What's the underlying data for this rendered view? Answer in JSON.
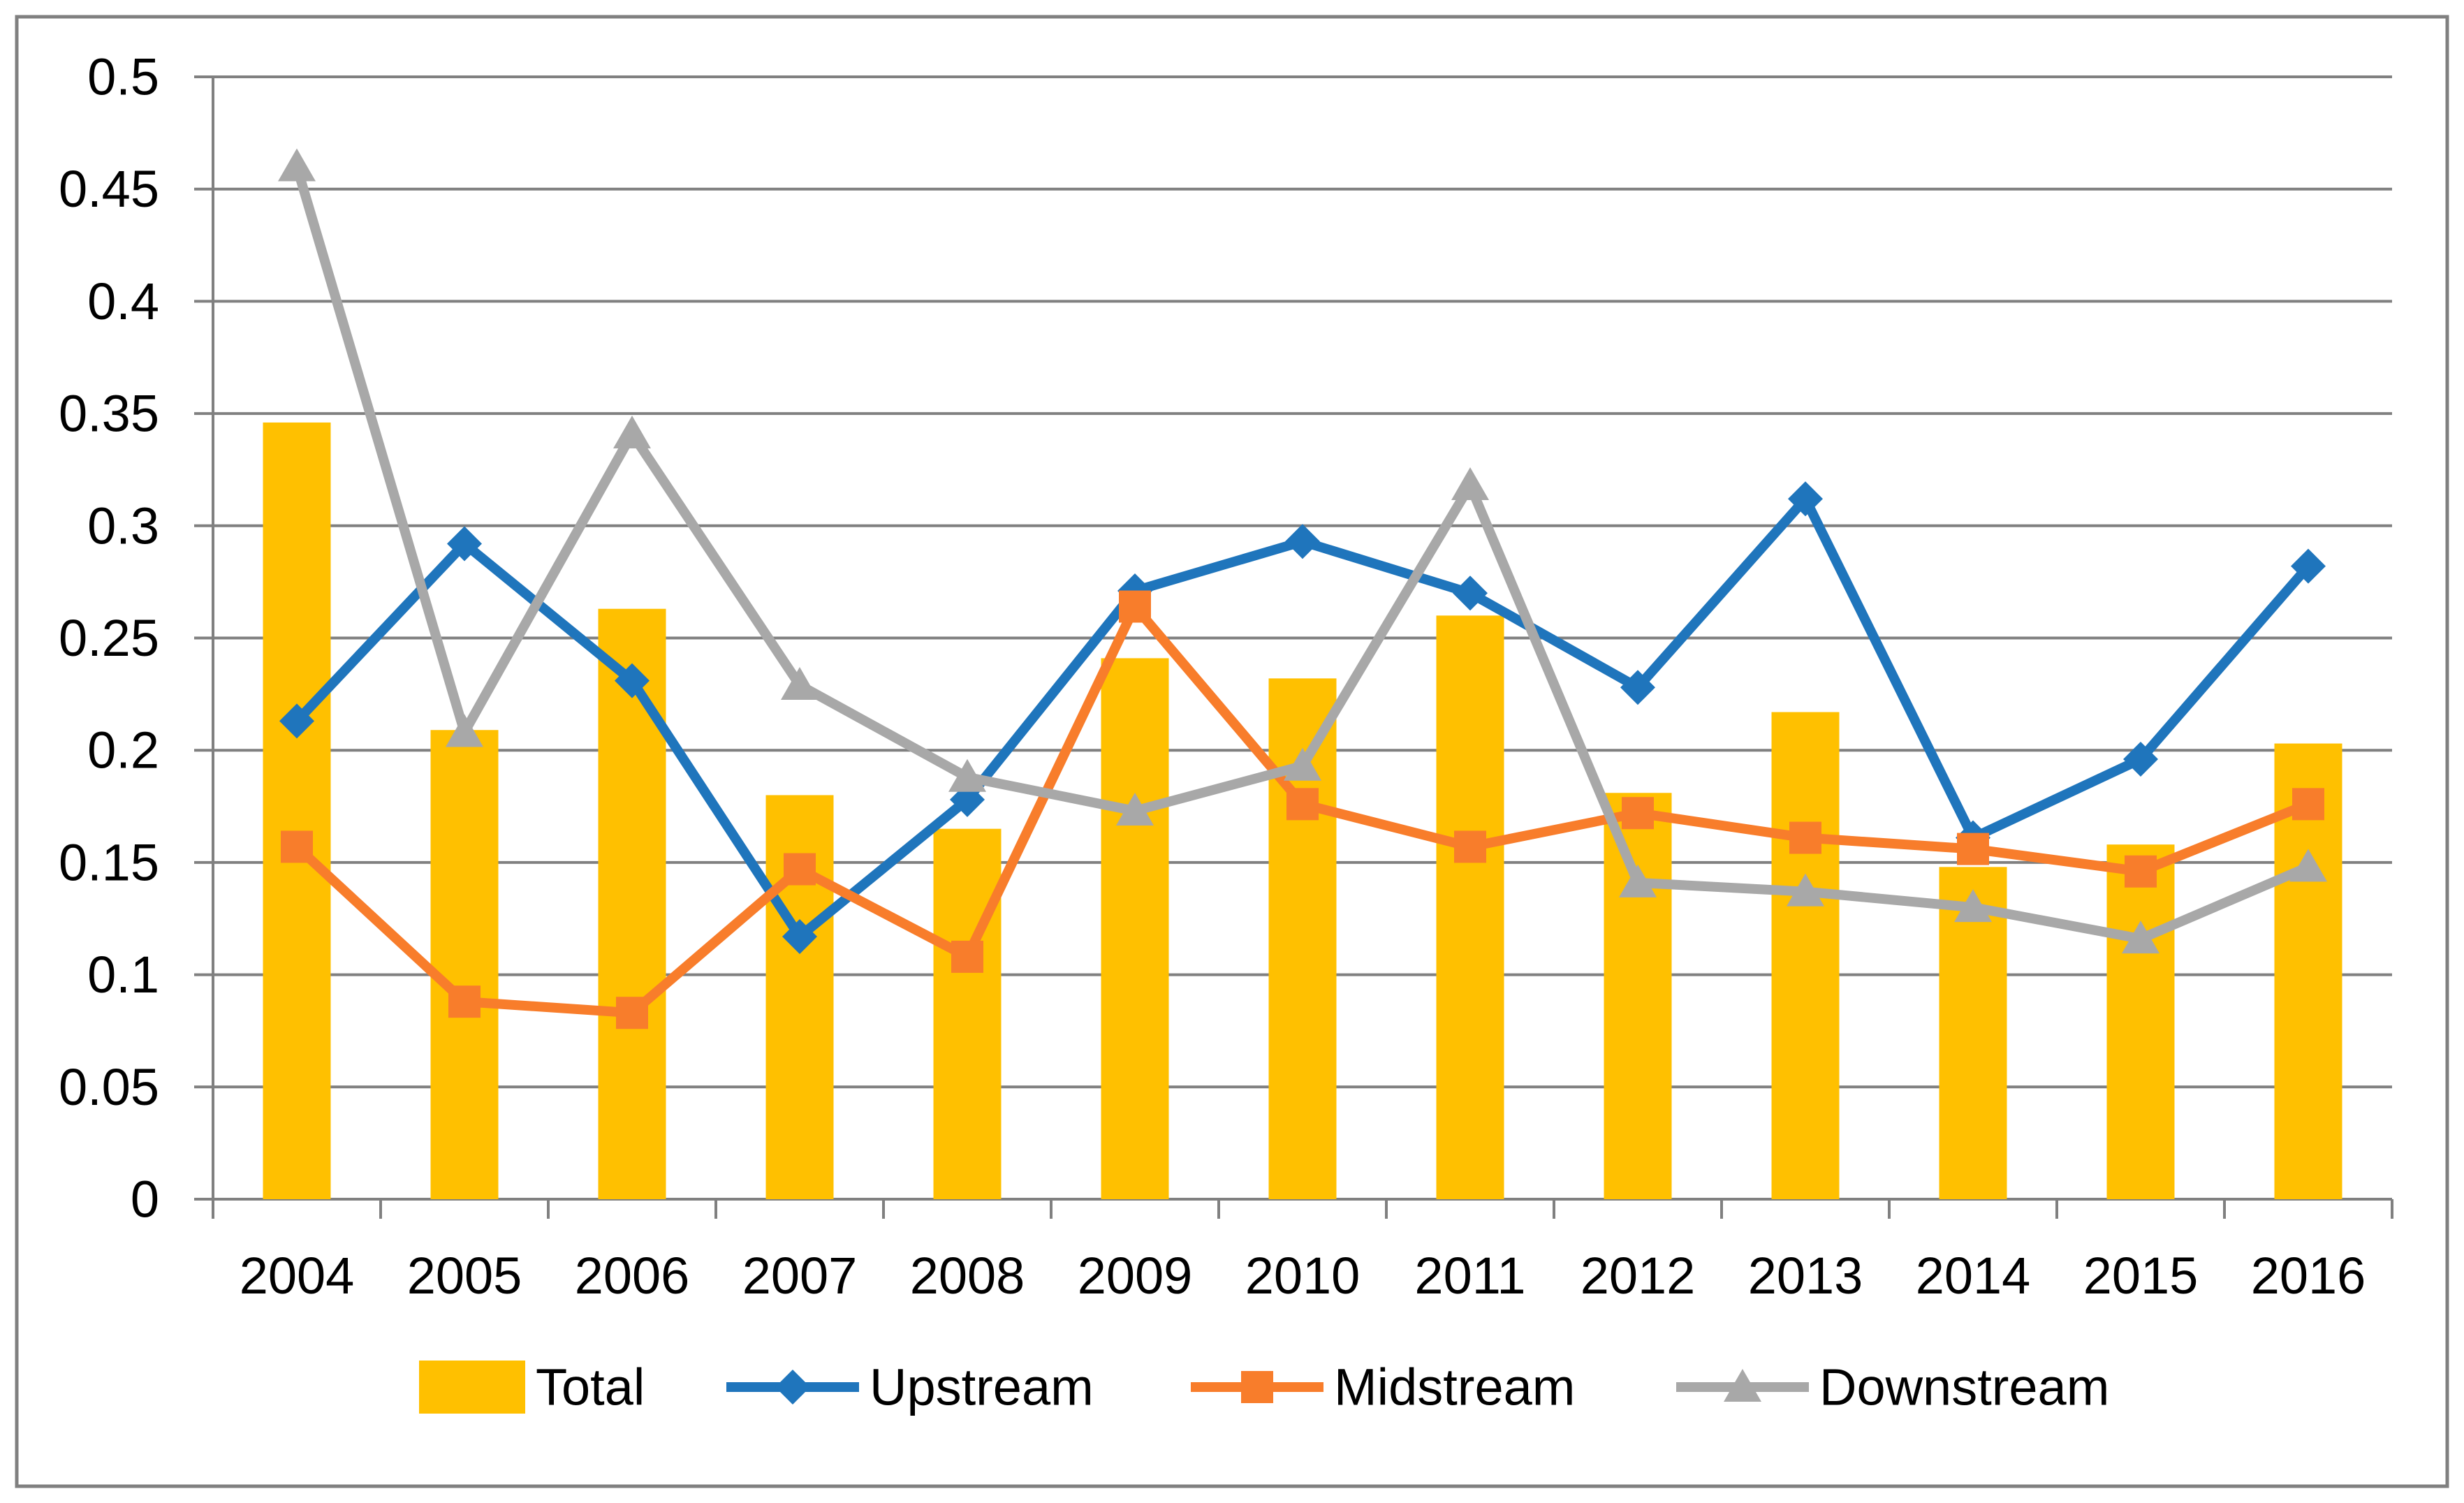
{
  "chart_data": {
    "type": "combo",
    "title": "",
    "categories": [
      "2004",
      "2005",
      "2006",
      "2007",
      "2008",
      "2009",
      "2010",
      "2011",
      "2012",
      "2013",
      "2014",
      "2015",
      "2016"
    ],
    "series": [
      {
        "name": "Total",
        "type": "bar",
        "marker": "rect",
        "color": "#FFC000",
        "values": [
          0.346,
          0.209,
          0.263,
          0.18,
          0.165,
          0.241,
          0.232,
          0.26,
          0.181,
          0.217,
          0.148,
          0.158,
          0.203
        ]
      },
      {
        "name": "Upstream",
        "type": "line",
        "marker": "diamond",
        "color": "#1F75BC",
        "values": [
          0.213,
          0.292,
          0.231,
          0.117,
          0.178,
          0.271,
          0.293,
          0.27,
          0.228,
          0.312,
          0.161,
          0.196,
          0.282
        ]
      },
      {
        "name": "Midstream",
        "type": "line",
        "marker": "square",
        "color": "#F87D2B",
        "values": [
          0.157,
          0.088,
          0.083,
          0.147,
          0.108,
          0.264,
          0.176,
          0.157,
          0.172,
          0.161,
          0.156,
          0.146,
          0.176
        ]
      },
      {
        "name": "Downstream",
        "type": "line",
        "marker": "triangle",
        "color": "#A8A8A8",
        "values": [
          0.46,
          0.208,
          0.341,
          0.229,
          0.188,
          0.173,
          0.193,
          0.318,
          0.141,
          0.137,
          0.13,
          0.116,
          0.148
        ]
      }
    ],
    "xlabel": "",
    "ylabel": "",
    "y_axis": {
      "min": 0,
      "max": 0.5,
      "step": 0.05,
      "tick_labels": [
        "0",
        "0.05",
        "0.1",
        "0.15",
        "0.2",
        "0.25",
        "0.3",
        "0.35",
        "0.4",
        "0.45",
        "0.5"
      ]
    },
    "grid": true,
    "legend_position": "bottom",
    "legend_labels": [
      "Total",
      "Upstream",
      "Midstream",
      "Downstream"
    ]
  },
  "colors": {
    "background": "#FFFFFF",
    "gridline": "#808080",
    "axis": "#808080",
    "frame_border": "#808080",
    "text": "#000000",
    "bar": "#FFC000",
    "upstream": "#1F75BC",
    "midstream": "#F87D2B",
    "downstream": "#A8A8A8"
  }
}
